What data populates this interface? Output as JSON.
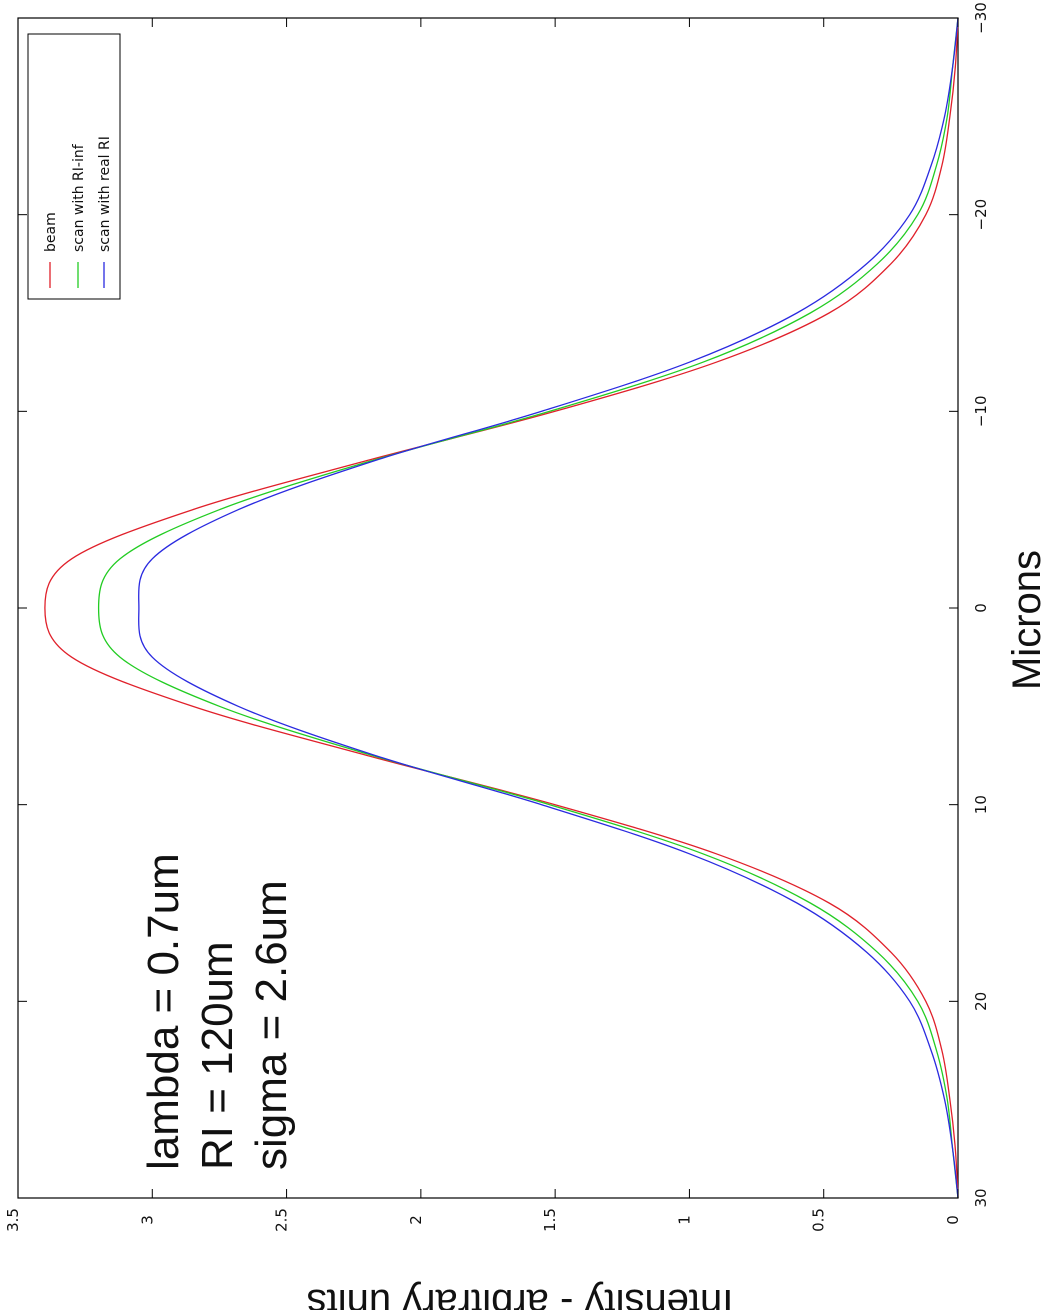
{
  "chart_data": {
    "type": "line",
    "orientation": "rotated-90-clockwise",
    "xlabel": "Microns",
    "ylabel": "Intensity - arbitrary units",
    "xlim": [
      -30,
      30
    ],
    "ylim": [
      0,
      3.5
    ],
    "xticks": [
      -30,
      -20,
      -10,
      0,
      10,
      20,
      30
    ],
    "xtick_labels": [
      "−30",
      "−20",
      "−10",
      "0",
      "10",
      "20",
      "30"
    ],
    "yticks": [
      0,
      0.5,
      1,
      1.5,
      2,
      2.5,
      3,
      3.5
    ],
    "ytick_labels": [
      "0",
      "0.5",
      "1",
      "1.5",
      "2",
      "2.5",
      "3",
      "3.5"
    ],
    "grid": false,
    "legend_position": "top-right",
    "annotations": [
      "lambda = 0.7um",
      "RI = 120um",
      "sigma = 2.6um"
    ],
    "x": [
      -30,
      -27.5,
      -25,
      -22.5,
      -20,
      -17.5,
      -15,
      -12.5,
      -10,
      -7.5,
      -5,
      -2.5,
      0,
      2.5,
      5,
      7.5,
      10,
      12.5,
      15,
      17.5,
      20,
      22.5,
      25,
      27.5,
      30
    ],
    "series": [
      {
        "name": "beam",
        "color": "#e0202a",
        "values": [
          0.0,
          0.01,
          0.03,
          0.06,
          0.12,
          0.25,
          0.48,
          0.9,
          1.5,
          2.2,
          2.85,
          3.3,
          3.4,
          3.3,
          2.85,
          2.2,
          1.5,
          0.9,
          0.48,
          0.25,
          0.12,
          0.06,
          0.03,
          0.01,
          0.0
        ]
      },
      {
        "name": "scan with RI-inf",
        "color": "#22cc22",
        "values": [
          0.0,
          0.02,
          0.04,
          0.08,
          0.15,
          0.3,
          0.55,
          0.95,
          1.52,
          2.18,
          2.75,
          3.12,
          3.2,
          3.12,
          2.75,
          2.18,
          1.52,
          0.95,
          0.55,
          0.3,
          0.15,
          0.08,
          0.04,
          0.02,
          0.0
        ]
      },
      {
        "name": "scan with real RI",
        "color": "#2a2ae0",
        "values": [
          0.0,
          0.02,
          0.05,
          0.1,
          0.18,
          0.34,
          0.6,
          1.0,
          1.55,
          2.17,
          2.68,
          3.0,
          3.05,
          3.0,
          2.68,
          2.17,
          1.55,
          1.0,
          0.6,
          0.34,
          0.18,
          0.1,
          0.05,
          0.02,
          0.0
        ]
      }
    ]
  }
}
